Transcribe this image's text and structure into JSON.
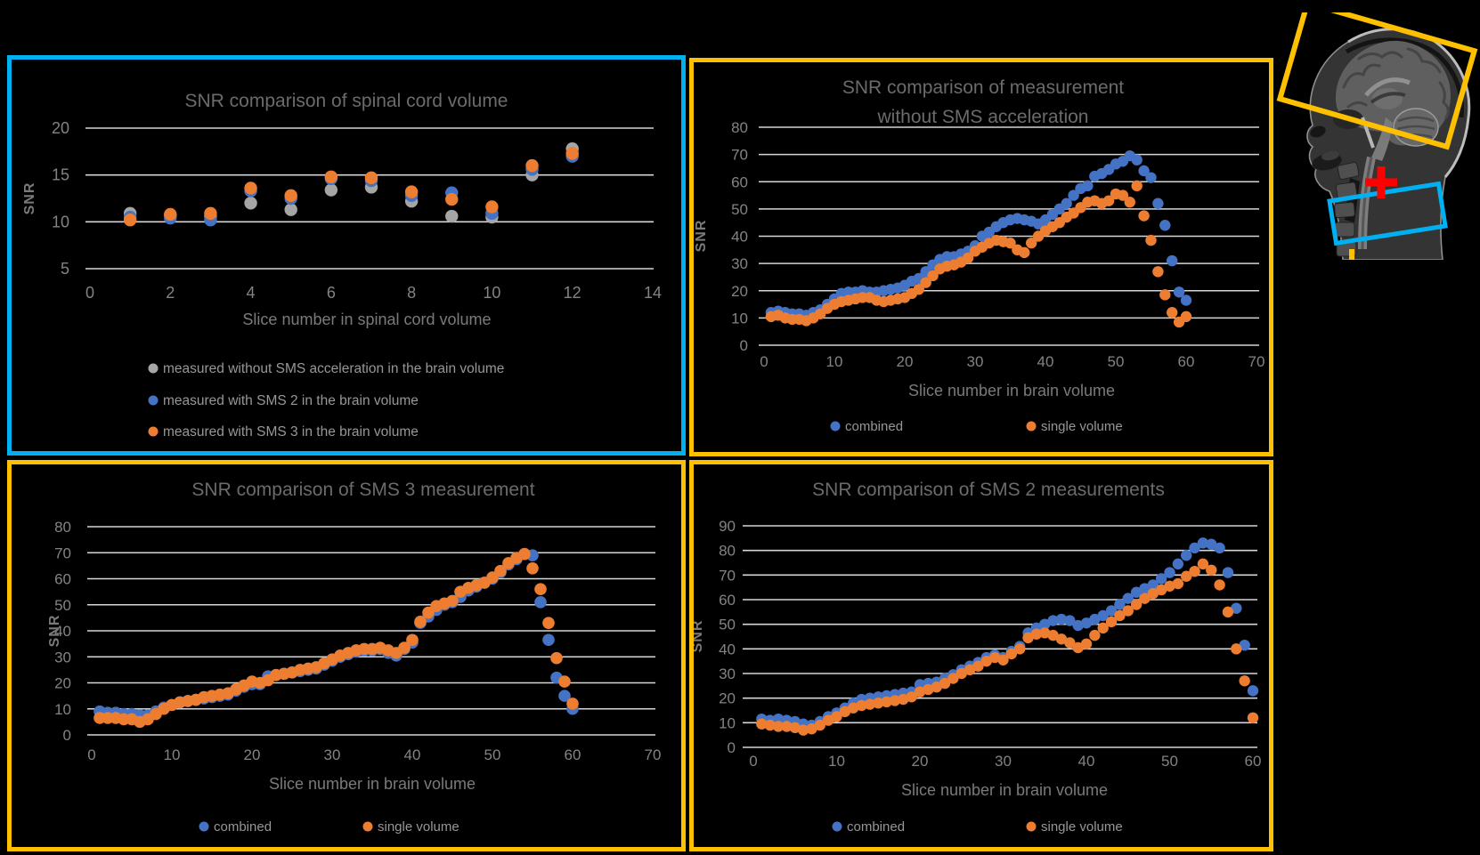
{
  "colors": {
    "background": "#000000",
    "panel_border_cyan": "#00B0F0",
    "panel_border_yellow": "#FFC000",
    "gridline": "#D6D6D6",
    "tick_label": "#838383",
    "title": "#6B6B6B",
    "axis_title": "#7A7A7A",
    "legend_text": "#979797",
    "series_blue": "#4472C4",
    "series_orange": "#ED7D31",
    "series_gray": "#A5A5A5",
    "mri_marker_red": "#FF0000"
  },
  "chart_data": [
    {
      "id": "spinal-cord",
      "type": "scatter",
      "title_lines": [
        "SNR comparison of spinal cord volume"
      ],
      "ylabel": "SNR",
      "xlabel": "Slice number in spinal cord volume",
      "ymin": 5,
      "ymax": 20,
      "yticks": [
        20,
        15,
        10,
        5
      ],
      "xticks": [
        0,
        2,
        4,
        6,
        8,
        10,
        12,
        14
      ],
      "x_start": 1,
      "grid": true,
      "legend_position": "bottom-left-column",
      "border_color": "#00B0F0",
      "series": [
        {
          "name": "measured without SMS acceleration in the brain volume",
          "color": "#A5A5A5",
          "values": [
            10.9,
            10.7,
            10.6,
            12.0,
            11.3,
            13.4,
            13.7,
            12.2,
            10.6,
            10.5,
            15.0,
            17.8
          ]
        },
        {
          "name": "measured with SMS 2 in the brain volume",
          "color": "#4472C4",
          "values": [
            10.5,
            10.4,
            10.2,
            13.3,
            12.5,
            14.6,
            14.4,
            12.8,
            13.1,
            10.9,
            15.6,
            17.0
          ]
        },
        {
          "name": "measured with SMS 3 in the brain volume",
          "color": "#ED7D31",
          "values": [
            10.2,
            10.8,
            10.9,
            13.6,
            12.8,
            14.8,
            14.7,
            13.2,
            12.4,
            11.6,
            16.0,
            17.3
          ]
        }
      ]
    },
    {
      "id": "no-sms",
      "type": "scatter",
      "title_lines": [
        "SNR comparison of measurement",
        "without SMS acceleration"
      ],
      "ylabel": "SNR",
      "xlabel": "Slice number in brain volume",
      "ymin": 0,
      "ymax": 80,
      "yticks": [
        80,
        70,
        60,
        50,
        40,
        30,
        20,
        10,
        0
      ],
      "xticks": [
        0,
        10,
        20,
        30,
        40,
        50,
        60,
        70
      ],
      "x_start": 1,
      "grid": true,
      "legend_position": "bottom-row",
      "border_color": "#FFC000",
      "series": [
        {
          "name": "combined",
          "color": "#4472C4",
          "values": [
            12,
            12.5,
            12,
            11.5,
            11.5,
            11,
            12,
            13,
            15,
            17,
            19,
            19.5,
            19.5,
            20,
            19.5,
            19.5,
            20,
            20.5,
            21,
            22,
            23.5,
            24.5,
            27,
            29.5,
            31.5,
            32.5,
            32.5,
            33.5,
            34.5,
            36.5,
            40,
            41.5,
            43.5,
            45,
            46,
            46.5,
            46,
            45.5,
            44.5,
            46,
            48,
            50,
            52,
            55,
            57.5,
            58.5,
            62,
            63,
            64.5,
            66.5,
            67.5,
            69.5,
            68,
            64,
            61.5,
            52,
            44,
            31,
            19.5,
            16.5
          ]
        },
        {
          "name": "single volume",
          "color": "#ED7D31",
          "values": [
            10.5,
            11,
            10,
            9.5,
            9.5,
            9,
            10,
            11.5,
            13.5,
            15,
            16,
            16.5,
            17,
            17.5,
            17.5,
            16.5,
            16,
            16.5,
            17,
            17.5,
            19,
            20.5,
            23,
            25.5,
            28,
            29,
            29.5,
            30.5,
            32,
            34.5,
            36,
            37.5,
            38.5,
            38,
            37.5,
            35,
            34,
            37.5,
            40,
            42,
            43.5,
            45,
            47,
            48.5,
            50.5,
            52.5,
            53,
            52,
            53,
            55.5,
            55,
            52.5,
            58.5,
            47.5,
            38.5,
            27,
            18.5,
            12,
            8.5,
            10.5
          ]
        }
      ]
    },
    {
      "id": "sms3",
      "type": "scatter",
      "title_lines": [
        "SNR comparison of SMS 3 measurement"
      ],
      "ylabel": "SNR",
      "xlabel": "Slice number in brain volume",
      "ymin": 0,
      "ymax": 80,
      "yticks": [
        80,
        70,
        60,
        50,
        40,
        30,
        20,
        10,
        0
      ],
      "xticks": [
        0,
        10,
        20,
        30,
        40,
        50,
        60,
        70
      ],
      "x_start": 1,
      "grid": true,
      "legend_position": "bottom-row",
      "border_color": "#FFC000",
      "series": [
        {
          "name": "combined",
          "color": "#4472C4",
          "values": [
            9,
            8.5,
            8.5,
            8,
            8,
            7.5,
            7.5,
            9,
            10.5,
            11.5,
            12.5,
            13,
            13.5,
            14,
            14.5,
            15,
            15.5,
            17,
            18.5,
            19.5,
            19.5,
            22.5,
            23,
            23.5,
            24,
            24.5,
            25,
            25.5,
            27,
            28.5,
            30,
            31,
            32,
            32.5,
            32.5,
            33,
            31.5,
            30.5,
            33,
            35.5,
            43,
            45.5,
            48,
            50,
            51,
            53,
            55.5,
            57,
            58.5,
            60,
            62.5,
            65.5,
            67.5,
            69.5,
            69,
            51,
            36.5,
            22,
            15,
            10
          ]
        },
        {
          "name": "single volume",
          "color": "#ED7D31",
          "values": [
            6.5,
            6.5,
            6.5,
            6,
            6,
            5,
            6,
            8,
            10,
            11.5,
            12.5,
            13,
            13.5,
            14.5,
            15,
            15.5,
            16,
            17.5,
            19,
            20.5,
            20,
            21,
            23,
            23.5,
            24,
            25,
            25.5,
            26,
            27.5,
            29,
            30.5,
            31.5,
            32.5,
            33,
            33,
            33.5,
            32.5,
            31.5,
            33.5,
            36.5,
            43.5,
            47,
            49.5,
            50.5,
            51.5,
            55,
            56.5,
            57.5,
            58.5,
            60.5,
            63,
            66,
            68,
            69.5,
            64,
            56,
            43,
            29.5,
            20.5,
            12
          ]
        }
      ]
    },
    {
      "id": "sms2",
      "type": "scatter",
      "title_lines": [
        "SNR comparison of SMS 2 measurements"
      ],
      "ylabel": "SNR",
      "xlabel": "Slice number in brain volume",
      "ymin": 0,
      "ymax": 90,
      "yticks": [
        90,
        80,
        70,
        60,
        50,
        40,
        30,
        20,
        10,
        0
      ],
      "xticks": [
        0,
        10,
        20,
        30,
        40,
        50,
        60
      ],
      "x_start": 1,
      "grid": true,
      "legend_position": "bottom-row",
      "border_color": "#FFC000",
      "series": [
        {
          "name": "combined",
          "color": "#4472C4",
          "values": [
            11.5,
            11,
            11.5,
            11,
            10.5,
            9.5,
            9,
            10.5,
            12.5,
            14,
            16,
            18,
            19.5,
            20,
            20.5,
            21,
            21.5,
            22,
            22.5,
            25.5,
            26,
            26.5,
            28,
            29.5,
            31.5,
            33,
            34.5,
            36.5,
            37.5,
            36.5,
            39,
            41,
            46.5,
            48.5,
            50,
            51.5,
            52,
            51.5,
            49.5,
            50.5,
            52,
            53.5,
            55.5,
            58,
            60.5,
            63,
            64.5,
            66,
            68.5,
            71,
            74.5,
            78,
            81,
            83,
            82.5,
            81,
            71,
            56.5,
            41.5,
            23
          ]
        },
        {
          "name": "single volume",
          "color": "#ED7D31",
          "values": [
            9.5,
            9,
            8.5,
            8.5,
            8,
            7,
            7.5,
            9,
            11,
            12.5,
            14.5,
            16,
            17,
            17.5,
            18,
            18.5,
            19,
            19.5,
            20.5,
            22.5,
            23.5,
            24.5,
            26,
            28,
            30,
            31.5,
            33,
            35,
            36.5,
            35.5,
            38,
            40,
            44.5,
            46,
            46.5,
            45.5,
            44,
            42.5,
            40.5,
            42,
            45.5,
            48.5,
            51,
            53.5,
            55.5,
            58,
            60.5,
            62.5,
            64,
            65.5,
            66.5,
            69.5,
            71.5,
            74.5,
            72,
            66,
            55,
            40,
            27,
            12
          ]
        }
      ]
    }
  ],
  "mri": {
    "description": "sagittal head and cervical spine MRI",
    "brain_box_color": "#FFC000",
    "cord_box_color": "#00B0F0",
    "marker_color": "#FF0000"
  }
}
